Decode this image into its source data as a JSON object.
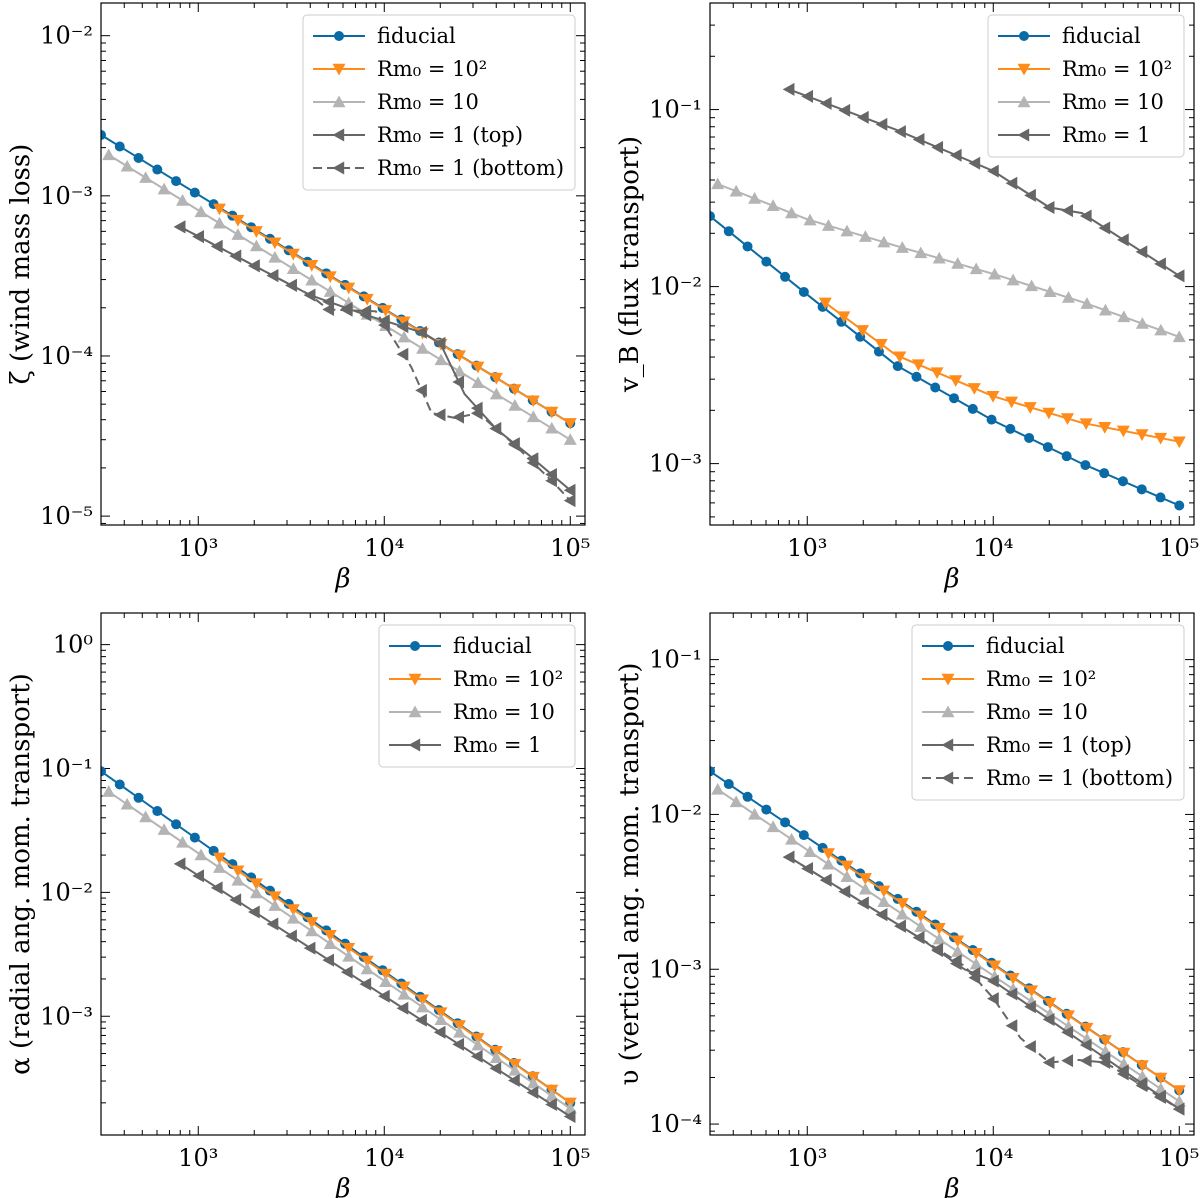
{
  "chart_data": [
    {
      "type": "line",
      "id": "zeta",
      "xlabel": "β",
      "ylabel": "ζ (wind mass loss)",
      "xscale": "log",
      "yscale": "log",
      "xlim": [
        300,
        120000
      ],
      "ylim": [
        8.8e-06,
        0.016
      ],
      "xticks": [
        {
          "v": 1000,
          "label": "10³"
        },
        {
          "v": 10000,
          "label": "10⁴"
        },
        {
          "v": 100000,
          "label": "10⁵"
        }
      ],
      "yticks": [
        {
          "v": 1e-05,
          "label": "10⁻⁵"
        },
        {
          "v": 0.0001,
          "label": "10⁻⁴"
        },
        {
          "v": 0.001,
          "label": "10⁻³"
        },
        {
          "v": 0.01,
          "label": "10⁻²"
        }
      ],
      "legend_position": "top-right",
      "series": [
        {
          "name": "fiducial",
          "color": "#0a6aa6",
          "marker": "circle",
          "dash": false,
          "x": [
            300,
            100000
          ],
          "y": [
            0.0024,
            3.8e-05
          ]
        },
        {
          "name": "Rm₀ = 10²",
          "color": "#ff8c1a",
          "marker": "triangle-down",
          "dash": false,
          "x": [
            1300,
            100000
          ],
          "y": [
            0.00083,
            3.8e-05
          ]
        },
        {
          "name": "Rm₀ = 10",
          "color": "#b4b4b4",
          "marker": "triangle-up",
          "dash": false,
          "x": [
            330,
            100000
          ],
          "y": [
            0.0018,
            3e-05
          ]
        },
        {
          "name": "Rm₀ = 1 (top)",
          "color": "#666666",
          "marker": "triangle-left",
          "dash": false,
          "x": [
            800,
            4000,
            8000,
            16000,
            20000,
            27000,
            40000,
            60000,
            100000
          ],
          "y": [
            0.00064,
            0.00024,
            0.00018,
            0.00014,
            0.00012,
            5.8e-05,
            3.5e-05,
            2.4e-05,
            1.45e-05
          ]
        },
        {
          "name": "Rm₀ = 1 (bottom)",
          "color": "#666666",
          "marker": "triangle-left",
          "dash": true,
          "x": [
            800,
            4000,
            5000,
            9000,
            14000,
            18000,
            24000,
            32000,
            50000,
            80000,
            100000
          ],
          "y": [
            0.00064,
            0.00024,
            0.000195,
            0.00019,
            8.5e-05,
            4.4e-05,
            4.1e-05,
            4.4e-05,
            2.8e-05,
            1.65e-05,
            1.25e-05
          ]
        }
      ]
    },
    {
      "type": "line",
      "id": "vB",
      "xlabel": "β",
      "ylabel": "v_B (flux transport)",
      "xscale": "log",
      "yscale": "log",
      "xlim": [
        300,
        120000
      ],
      "ylim": [
        0.00045,
        0.4
      ],
      "xticks": [
        {
          "v": 1000,
          "label": "10³"
        },
        {
          "v": 10000,
          "label": "10⁴"
        },
        {
          "v": 100000,
          "label": "10⁵"
        }
      ],
      "yticks": [
        {
          "v": 0.001,
          "label": "10⁻³"
        },
        {
          "v": 0.01,
          "label": "10⁻²"
        },
        {
          "v": 0.1,
          "label": "10⁻¹"
        }
      ],
      "legend_position": "top-right",
      "series": [
        {
          "name": "fiducial",
          "color": "#0a6aa6",
          "marker": "circle",
          "dash": false,
          "x": [
            300,
            1000,
            3000,
            10000,
            30000,
            100000
          ],
          "y": [
            0.025,
            0.009,
            0.0036,
            0.00175,
            0.001,
            0.00058
          ]
        },
        {
          "name": "Rm₀ = 10²",
          "color": "#ff8c1a",
          "marker": "triangle-down",
          "dash": false,
          "x": [
            1250,
            3000,
            10000,
            30000,
            100000
          ],
          "y": [
            0.0081,
            0.0041,
            0.0024,
            0.0017,
            0.00133
          ]
        },
        {
          "name": "Rm₀ = 10",
          "color": "#b4b4b4",
          "marker": "triangle-up",
          "dash": false,
          "x": [
            330,
            1000,
            3000,
            10000,
            30000,
            100000
          ],
          "y": [
            0.038,
            0.024,
            0.017,
            0.0118,
            0.0082,
            0.0052
          ]
        },
        {
          "name": "Rm₀ = 1",
          "color": "#666666",
          "marker": "triangle-left",
          "dash": false,
          "x": [
            800,
            3000,
            10000,
            20000,
            30000,
            100000
          ],
          "y": [
            0.13,
            0.077,
            0.045,
            0.028,
            0.026,
            0.0115
          ]
        }
      ]
    },
    {
      "type": "line",
      "id": "alpha",
      "xlabel": "β",
      "ylabel": "α (radial ang. mom. transport)",
      "xscale": "log",
      "yscale": "log",
      "xlim": [
        300,
        120000
      ],
      "ylim": [
        0.00011,
        1.8
      ],
      "xticks": [
        {
          "v": 1000,
          "label": "10³"
        },
        {
          "v": 10000,
          "label": "10⁴"
        },
        {
          "v": 100000,
          "label": "10⁵"
        }
      ],
      "yticks": [
        {
          "v": 0.001,
          "label": "10⁻³"
        },
        {
          "v": 0.01,
          "label": "10⁻²"
        },
        {
          "v": 0.1,
          "label": "10⁻¹"
        },
        {
          "v": 1,
          "label": "10⁰"
        }
      ],
      "legend_position": "top-right",
      "series": [
        {
          "name": "fiducial",
          "color": "#0a6aa6",
          "marker": "circle",
          "dash": false,
          "x": [
            300,
            100000
          ],
          "y": [
            0.095,
            0.0002
          ]
        },
        {
          "name": "Rm₀ = 10²",
          "color": "#ff8c1a",
          "marker": "triangle-down",
          "dash": false,
          "x": [
            1300,
            100000
          ],
          "y": [
            0.019,
            0.0002
          ]
        },
        {
          "name": "Rm₀ = 10",
          "color": "#b4b4b4",
          "marker": "triangle-up",
          "dash": false,
          "x": [
            330,
            100000
          ],
          "y": [
            0.065,
            0.00018
          ]
        },
        {
          "name": "Rm₀ = 1",
          "color": "#666666",
          "marker": "triangle-left",
          "dash": false,
          "x": [
            800,
            100000
          ],
          "y": [
            0.017,
            0.000155
          ]
        }
      ]
    },
    {
      "type": "line",
      "id": "upsilon",
      "xlabel": "β",
      "ylabel": "υ (vertical ang. mom. transport)",
      "xscale": "log",
      "yscale": "log",
      "xlim": [
        300,
        120000
      ],
      "ylim": [
        8.5e-05,
        0.2
      ],
      "xticks": [
        {
          "v": 1000,
          "label": "10³"
        },
        {
          "v": 10000,
          "label": "10⁴"
        },
        {
          "v": 100000,
          "label": "10⁵"
        }
      ],
      "yticks": [
        {
          "v": 0.0001,
          "label": "10⁻⁴"
        },
        {
          "v": 0.001,
          "label": "10⁻³"
        },
        {
          "v": 0.01,
          "label": "10⁻²"
        },
        {
          "v": 0.1,
          "label": "10⁻¹"
        }
      ],
      "legend_position": "top-right",
      "series": [
        {
          "name": "fiducial",
          "color": "#0a6aa6",
          "marker": "circle",
          "dash": false,
          "x": [
            300,
            100000
          ],
          "y": [
            0.019,
            0.000165
          ]
        },
        {
          "name": "Rm₀ = 10²",
          "color": "#ff8c1a",
          "marker": "triangle-down",
          "dash": false,
          "x": [
            1300,
            100000
          ],
          "y": [
            0.0056,
            0.000165
          ]
        },
        {
          "name": "Rm₀ = 10",
          "color": "#b4b4b4",
          "marker": "triangle-up",
          "dash": false,
          "x": [
            330,
            100000
          ],
          "y": [
            0.0145,
            0.00014
          ]
        },
        {
          "name": "Rm₀ = 1 (top)",
          "color": "#666666",
          "marker": "triangle-left",
          "dash": false,
          "x": [
            800,
            4000,
            7000,
            10000,
            100000
          ],
          "y": [
            0.0053,
            0.0016,
            0.001,
            0.00084,
            0.000125
          ]
        },
        {
          "name": "Rm₀ = 1 (bottom)",
          "color": "#666666",
          "marker": "triangle-left",
          "dash": true,
          "x": [
            800,
            4000,
            7000,
            10000,
            14000,
            20000,
            28000,
            40000,
            100000
          ],
          "y": [
            0.0053,
            0.0016,
            0.00105,
            0.00065,
            0.00036,
            0.00025,
            0.00026,
            0.00025,
            0.000125
          ]
        }
      ]
    }
  ]
}
